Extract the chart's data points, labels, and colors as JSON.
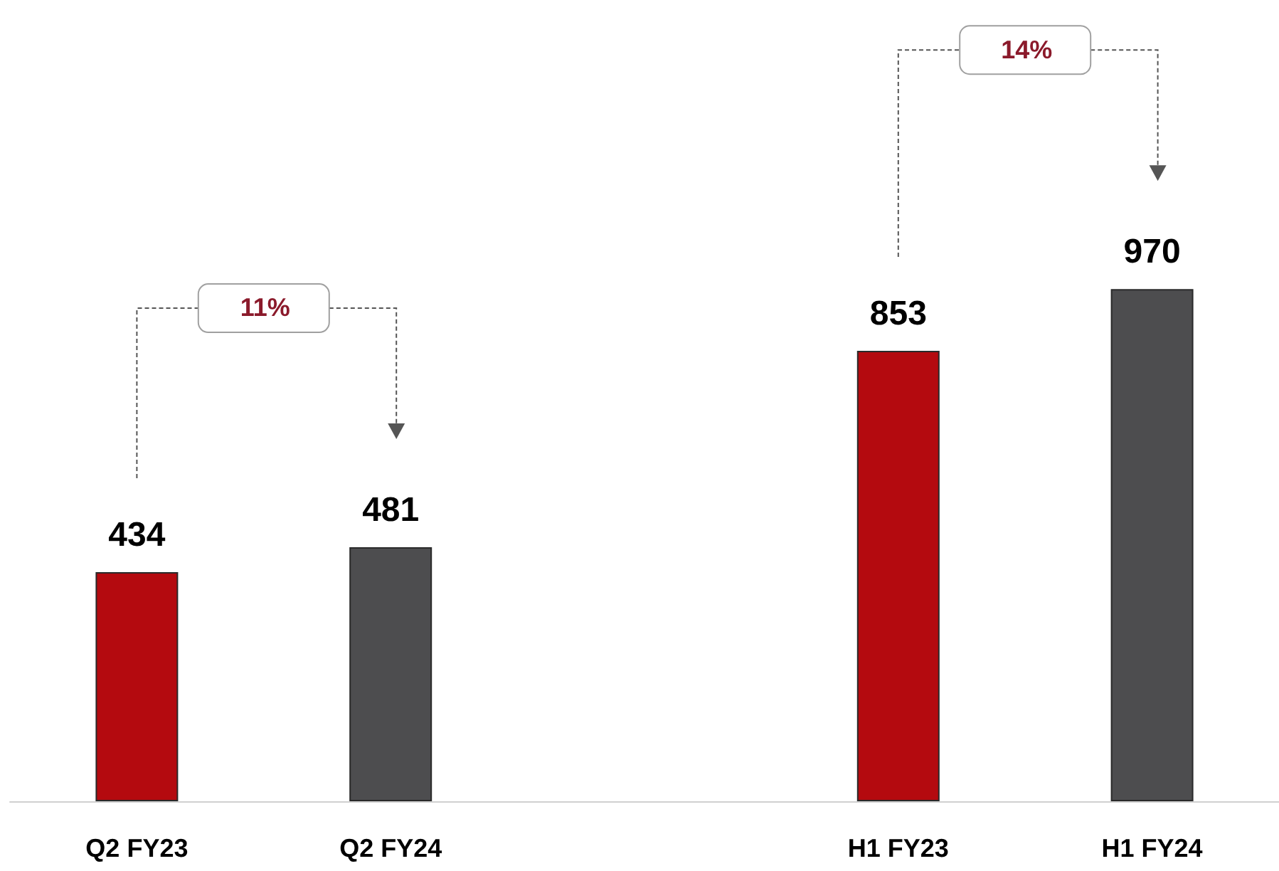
{
  "chart_data": {
    "type": "bar",
    "categories": [
      "Q2 FY23",
      "Q2 FY24",
      null,
      "H1 FY23",
      "H1 FY24"
    ],
    "values": [
      434,
      481,
      null,
      853,
      970
    ],
    "colors": [
      "#b40a0f",
      "#4d4d4f",
      null,
      "#b40a0f",
      "#4d4d4f"
    ],
    "data_labels": true,
    "annotations": [
      "11%",
      "14%"
    ]
  }
}
